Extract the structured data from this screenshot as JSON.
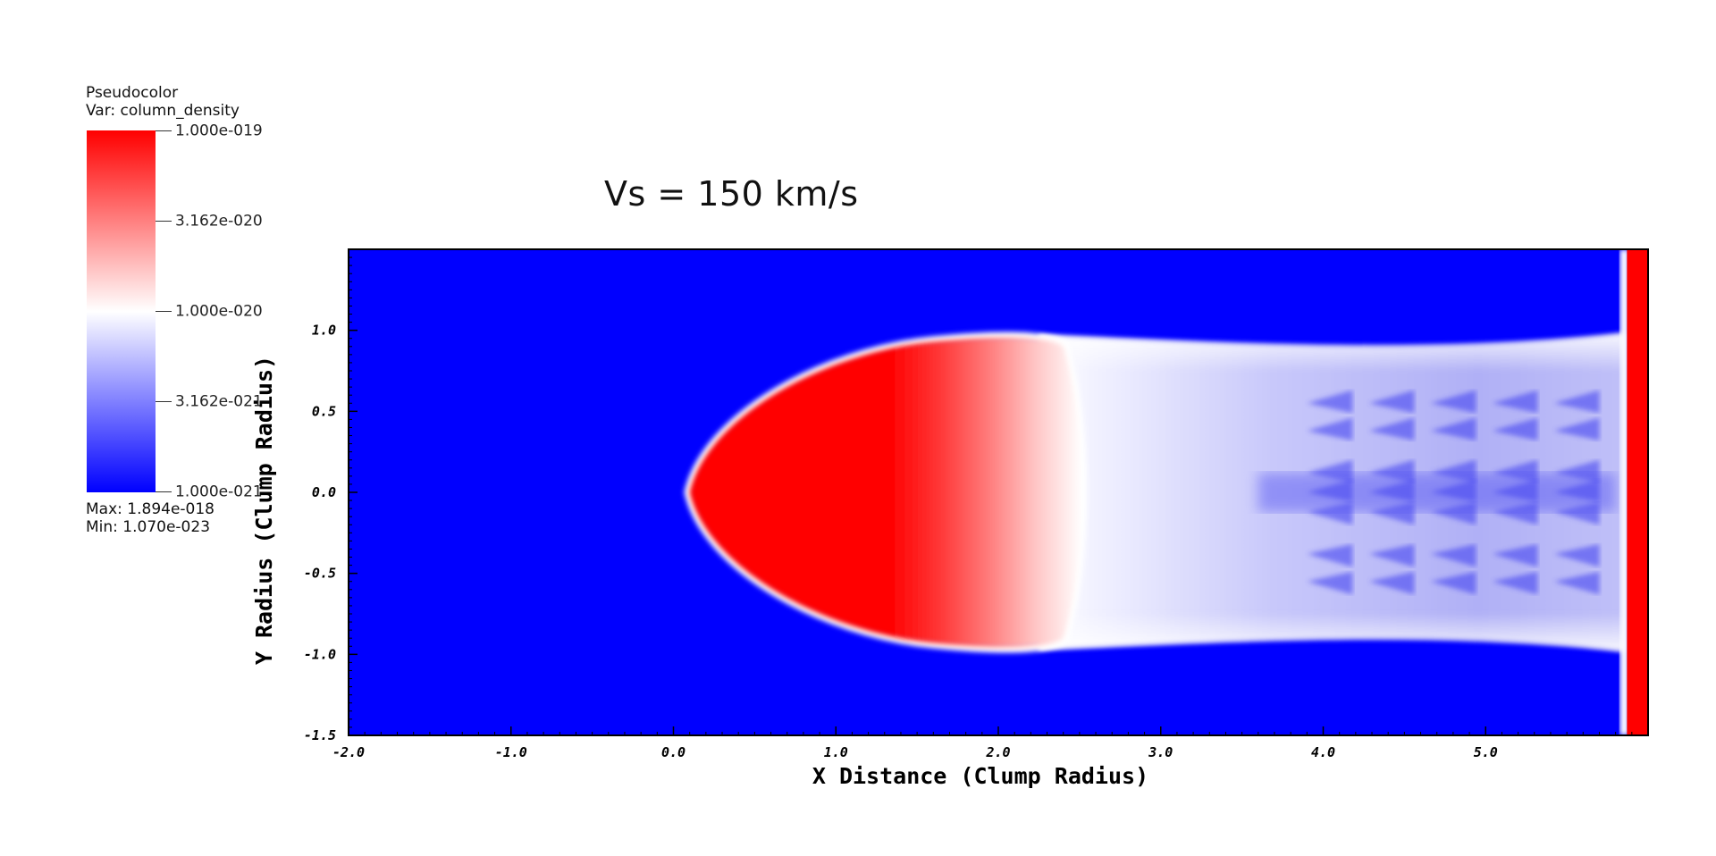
{
  "legend": {
    "plot_type": "Pseudocolor",
    "variable": "Var: column_density",
    "ticks": [
      "1.000e-019",
      "3.162e-020",
      "1.000e-020",
      "3.162e-021",
      "1.000e-021"
    ],
    "max": "Max:  1.894e-018",
    "min": "Min:  1.070e-023",
    "colors": {
      "high": "#ff0000",
      "mid": "#ffffff",
      "low": "#0000ff"
    }
  },
  "chart_data": {
    "type": "heatmap",
    "title": "Vs = 150 km/s",
    "xlabel": "X Distance (Clump Radius)",
    "ylabel": "Y Radius (Clump Radius)",
    "xlim": [
      -2.0,
      6.0
    ],
    "ylim": [
      -1.5,
      1.5
    ],
    "x_ticks": [
      -2.0,
      -1.0,
      0.0,
      1.0,
      2.0,
      3.0,
      4.0,
      5.0
    ],
    "y_ticks": [
      -1.5,
      -1.0,
      -0.5,
      0.0,
      0.5,
      1.0
    ],
    "x_tick_labels": [
      "-2.0",
      "-1.0",
      "0.0",
      "1.0",
      "2.0",
      "3.0",
      "4.0",
      "5.0"
    ],
    "y_tick_labels": [
      "-1.5",
      "-1.0",
      "-0.5",
      "0.0",
      "0.5",
      "1.0"
    ],
    "colorscale": "log",
    "color_range": [
      1e-21,
      1e-19
    ],
    "background_color": "#0000ff",
    "features": {
      "clump_head_x": 0.1,
      "clump_body_end_x": 2.4,
      "tail_end_x": 5.85,
      "boundary_strip_x": [
        5.87,
        6.0
      ],
      "tail_half_width": 0.95
    }
  }
}
